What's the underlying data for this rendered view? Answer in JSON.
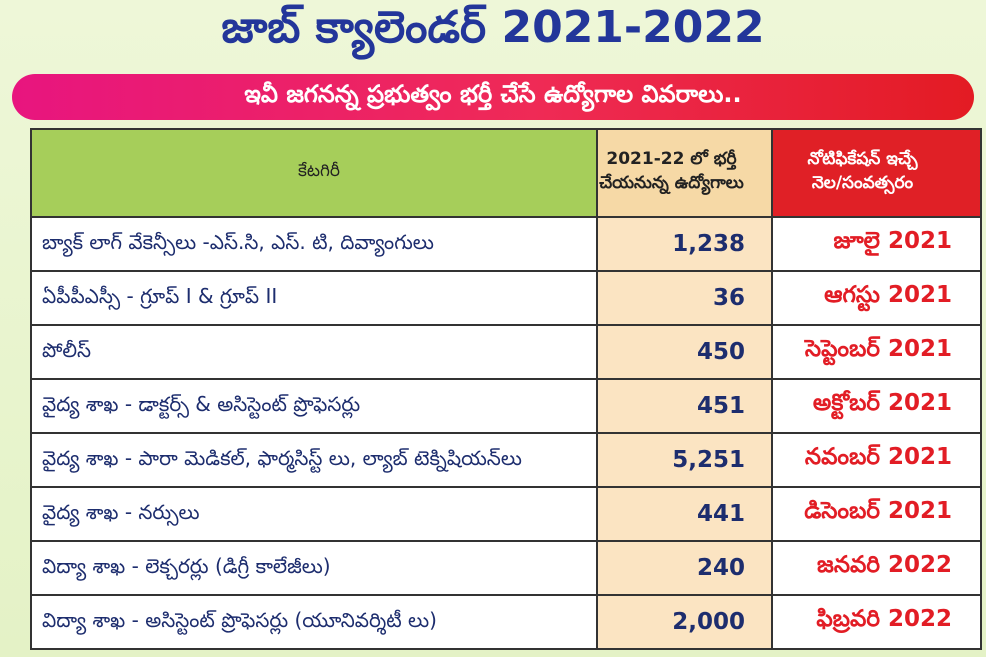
{
  "header": {
    "title": "జాబ్ క్యాలెండర్ 2021-2022",
    "subtitle": "ఇవీ జగనన్న ప్రభుత్వం భర్తీ చేసే ఉద్యోగాల వివరాలు.."
  },
  "table": {
    "headers": [
      [
        "కేటగిరీ"
      ],
      [
        "2021-22 లో భర్తీ",
        "చేయనున్న ఉద్యోగాలు"
      ],
      [
        "నోటిఫికేషన్ ఇచ్చే",
        "నెల/సంవత్సరం"
      ]
    ],
    "rows": [
      [
        "బ్యాక్ లాగ్ వేకెన్సీలు -ఎస్.సి, ఎస్. టి, దివ్యాంగులు",
        "1,238",
        "జూలై 2021"
      ],
      [
        "ఏపీపీఎస్సీ - గ్రూప్ I & గ్రూప్ II",
        "36",
        "ఆగస్టు 2021"
      ],
      [
        "పోలీస్",
        "450",
        "సెప్టెంబర్ 2021"
      ],
      [
        "వైద్య శాఖ - డాక్టర్స్ & అసిస్టెంట్ ప్రొఫెసర్లు",
        "451",
        "అక్టోబర్ 2021"
      ],
      [
        "వైద్య శాఖ - పారా మెడికల్, ఫార్మసిస్ట్ లు, ల్యాబ్ టెక్నిషియన్‌లు",
        "5,251",
        "నవంబర్ 2021"
      ],
      [
        "వైద్య శాఖ - నర్సులు",
        "441",
        "డిసెంబర్ 2021"
      ],
      [
        "విద్యా శాఖ - లెక్చరర్లు (డిగ్రీ కాలేజీలు)",
        "240",
        "జనవరి 2022"
      ],
      [
        "విద్యా శాఖ - అసిస్టెంట్ ప్రొఫెసర్లు (యూనివర్శిటీ లు)",
        "2,000",
        "ఫిబ్రవరి 2022"
      ]
    ]
  }
}
